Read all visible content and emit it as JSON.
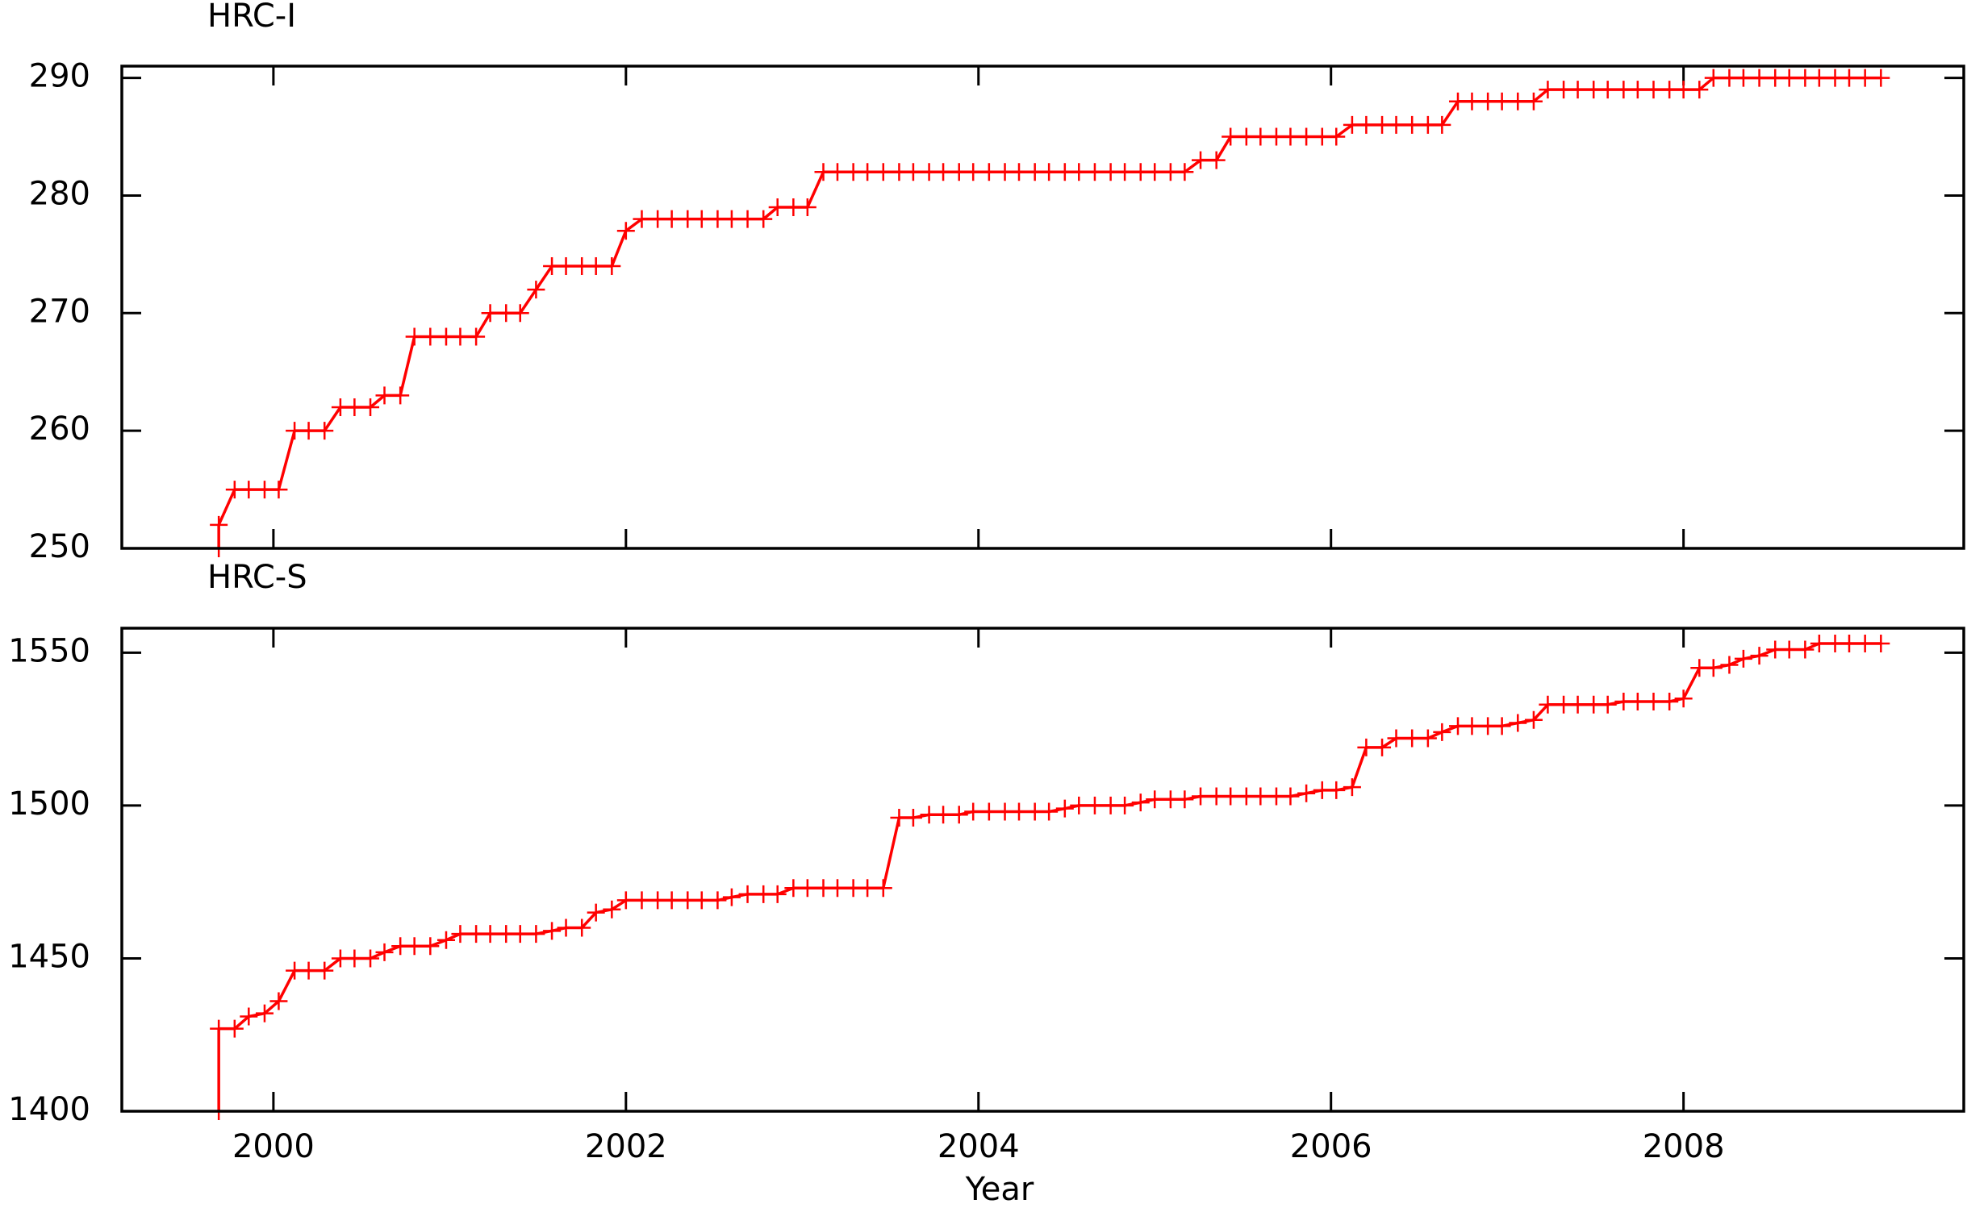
{
  "chart_data": [
    {
      "type": "line",
      "title": "HRC-I",
      "color": "#ff0000",
      "xlim": [
        1999.14,
        2009.59
      ],
      "ylim": [
        250,
        291
      ],
      "yticks": [
        250,
        260,
        270,
        280,
        290
      ],
      "x": [
        1999.69,
        1999.69,
        1999.78,
        1999.86,
        1999.95,
        2000.03,
        2000.12,
        2000.2,
        2000.29,
        2000.38,
        2000.46,
        2000.55,
        2000.63,
        2000.72,
        2000.8,
        2000.89,
        2000.98,
        2001.06,
        2001.15,
        2001.23,
        2001.32,
        2001.4,
        2001.49,
        2001.58,
        2001.66,
        2001.75,
        2001.83,
        2001.92,
        2002.0,
        2002.09,
        2002.18,
        2002.26,
        2002.35,
        2002.43,
        2002.52,
        2002.6,
        2002.69,
        2002.78,
        2002.86,
        2002.95,
        2003.03,
        2003.12,
        2003.2,
        2003.29,
        2003.37,
        2003.46,
        2003.55,
        2003.63,
        2003.72,
        2003.8,
        2003.89,
        2003.97,
        2004.06,
        2004.15,
        2004.23,
        2004.32,
        2004.4,
        2004.49,
        2004.57,
        2004.66,
        2004.75,
        2004.83,
        2004.92,
        2005.0,
        2005.09,
        2005.17,
        2005.26,
        2005.35,
        2005.43,
        2005.52,
        2005.6,
        2005.69,
        2005.77,
        2005.86,
        2005.95,
        2006.03,
        2006.12,
        2006.2,
        2006.29,
        2006.37,
        2006.46,
        2006.55,
        2006.63,
        2006.72,
        2006.8,
        2006.89,
        2006.97,
        2007.06,
        2007.15,
        2007.23,
        2007.32,
        2007.4,
        2007.49,
        2007.57,
        2007.66,
        2007.74,
        2007.83,
        2007.92,
        2008.0,
        2008.09,
        2008.17,
        2008.26,
        2008.34,
        2008.43,
        2008.52,
        2008.6,
        2008.69,
        2008.77,
        2008.86,
        2008.94,
        2009.03,
        2009.12
      ],
      "values": [
        250,
        252,
        255,
        255,
        255,
        255,
        260,
        260,
        260,
        262,
        262,
        262,
        263,
        263,
        268,
        268,
        268,
        268,
        268,
        270,
        270,
        270,
        272,
        274,
        274,
        274,
        274,
        274,
        277,
        278,
        278,
        278,
        278,
        278,
        278,
        278,
        278,
        278,
        279,
        279,
        279,
        282,
        282,
        282,
        282,
        282,
        282,
        282,
        282,
        282,
        282,
        282,
        282,
        282,
        282,
        282,
        282,
        282,
        282,
        282,
        282,
        282,
        282,
        282,
        282,
        282,
        283,
        283,
        285,
        285,
        285,
        285,
        285,
        285,
        285,
        285,
        286,
        286,
        286,
        286,
        286,
        286,
        286,
        288,
        288,
        288,
        288,
        288,
        288,
        289,
        289,
        289,
        289,
        289,
        289,
        289,
        289,
        289,
        289,
        289,
        290,
        290,
        290,
        290,
        290,
        290,
        290,
        290,
        290,
        290,
        290,
        290
      ]
    },
    {
      "type": "line",
      "title": "HRC-S",
      "color": "#ff0000",
      "x_label": "Year",
      "xlim": [
        1999.14,
        2009.59
      ],
      "xticks": [
        2000,
        2002,
        2004,
        2006,
        2008
      ],
      "ylim": [
        1400,
        1558
      ],
      "yticks": [
        1400,
        1450,
        1500,
        1550
      ],
      "x": [
        1999.69,
        1999.69,
        1999.78,
        1999.86,
        1999.95,
        2000.03,
        2000.12,
        2000.2,
        2000.29,
        2000.38,
        2000.46,
        2000.55,
        2000.63,
        2000.72,
        2000.8,
        2000.89,
        2000.98,
        2001.06,
        2001.15,
        2001.23,
        2001.32,
        2001.4,
        2001.49,
        2001.58,
        2001.66,
        2001.75,
        2001.83,
        2001.92,
        2002.0,
        2002.09,
        2002.18,
        2002.26,
        2002.35,
        2002.43,
        2002.52,
        2002.6,
        2002.69,
        2002.78,
        2002.86,
        2002.95,
        2003.03,
        2003.12,
        2003.2,
        2003.29,
        2003.37,
        2003.46,
        2003.55,
        2003.63,
        2003.72,
        2003.8,
        2003.89,
        2003.97,
        2004.06,
        2004.15,
        2004.23,
        2004.32,
        2004.4,
        2004.49,
        2004.57,
        2004.66,
        2004.75,
        2004.83,
        2004.92,
        2005.0,
        2005.09,
        2005.17,
        2005.26,
        2005.35,
        2005.43,
        2005.52,
        2005.6,
        2005.69,
        2005.77,
        2005.86,
        2005.95,
        2006.03,
        2006.12,
        2006.2,
        2006.29,
        2006.37,
        2006.46,
        2006.55,
        2006.63,
        2006.72,
        2006.8,
        2006.89,
        2006.97,
        2007.06,
        2007.15,
        2007.23,
        2007.32,
        2007.4,
        2007.49,
        2007.57,
        2007.66,
        2007.74,
        2007.83,
        2007.92,
        2008.0,
        2008.09,
        2008.17,
        2008.26,
        2008.34,
        2008.43,
        2008.52,
        2008.6,
        2008.69,
        2008.77,
        2008.86,
        2008.94,
        2009.03,
        2009.12
      ],
      "values": [
        1400,
        1427,
        1427,
        1431,
        1432,
        1436,
        1446,
        1446,
        1446,
        1450,
        1450,
        1450,
        1452,
        1454,
        1454,
        1454,
        1456,
        1458,
        1458,
        1458,
        1458,
        1458,
        1458,
        1459,
        1460,
        1460,
        1465,
        1466,
        1469,
        1469,
        1469,
        1469,
        1469,
        1469,
        1469,
        1470,
        1471,
        1471,
        1471,
        1473,
        1473,
        1473,
        1473,
        1473,
        1473,
        1473,
        1496,
        1496,
        1497,
        1497,
        1497,
        1498,
        1498,
        1498,
        1498,
        1498,
        1498,
        1499,
        1500,
        1500,
        1500,
        1500,
        1501,
        1502,
        1502,
        1502,
        1503,
        1503,
        1503,
        1503,
        1503,
        1503,
        1503,
        1504,
        1505,
        1505,
        1506,
        1519,
        1519,
        1522,
        1522,
        1522,
        1524,
        1526,
        1526,
        1526,
        1526,
        1527,
        1528,
        1533,
        1533,
        1533,
        1533,
        1533,
        1534,
        1534,
        1534,
        1534,
        1535,
        1545,
        1545,
        1546,
        1548,
        1549,
        1551,
        1551,
        1551,
        1553,
        1553,
        1553,
        1553,
        1553
      ]
    }
  ]
}
